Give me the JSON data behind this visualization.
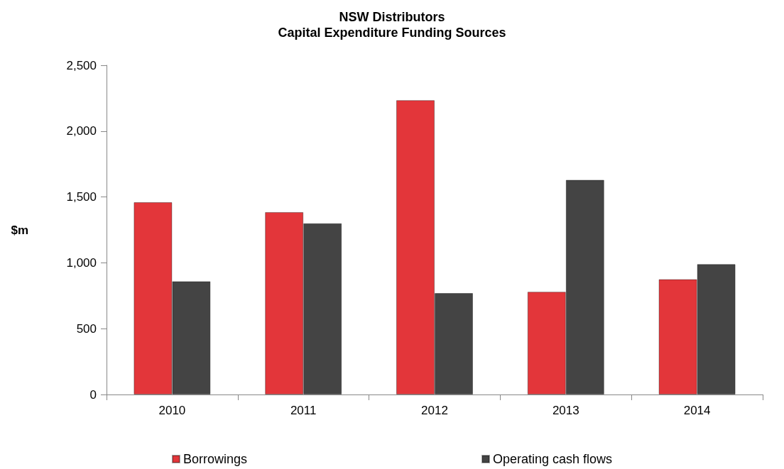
{
  "chart_data": {
    "type": "bar",
    "title": "NSW Distributors\nCapital Expenditure Funding Sources",
    "ylabel": "$m",
    "categories": [
      "2010",
      "2011",
      "2012",
      "2013",
      "2014"
    ],
    "series": [
      {
        "name": "Borrowings",
        "color": "#e3363a",
        "values": [
          1460,
          1385,
          2235,
          780,
          875
        ]
      },
      {
        "name": "Operating cash flows",
        "color": "#444444",
        "values": [
          860,
          1300,
          770,
          1630,
          990
        ]
      }
    ],
    "ylim": [
      0,
      2500
    ],
    "yticks": [
      0,
      500,
      {
        "value": 1000,
        "label": "1,000"
      },
      {
        "value": 1500,
        "label": "1,500"
      },
      {
        "value": 2000,
        "label": "2,000"
      },
      {
        "value": 2500,
        "label": "2,500"
      }
    ],
    "grid": false,
    "legend": "bottom"
  }
}
